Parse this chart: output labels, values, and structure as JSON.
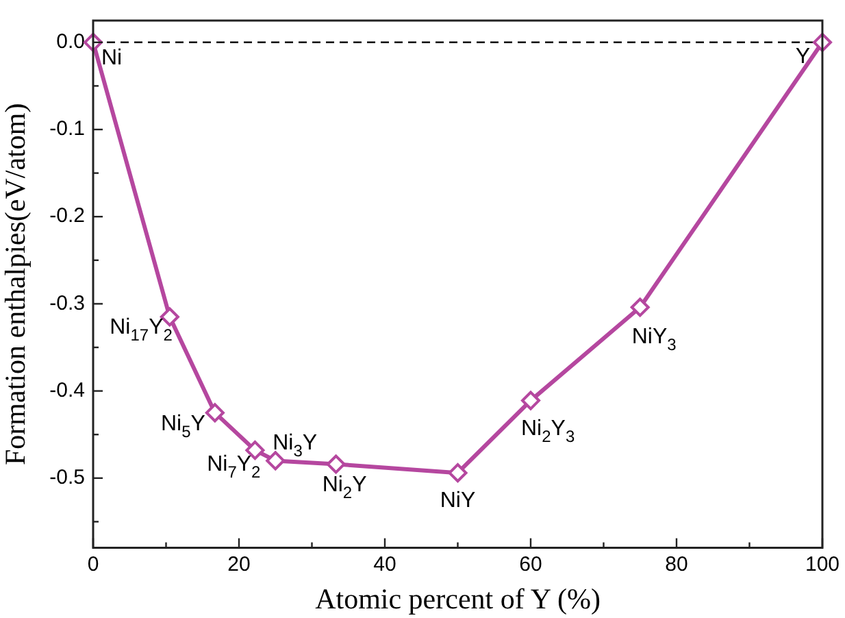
{
  "chart_data": {
    "type": "line",
    "xlabel": "Atomic percent of Y (%)",
    "ylabel": "Formation enthalpies(eV/atom)",
    "x": [
      0,
      10.5,
      16.7,
      22.2,
      25,
      33.3,
      50,
      60,
      75,
      100
    ],
    "series": [
      {
        "color": "#b5479f",
        "values": [
          0,
          -0.315,
          -0.425,
          -0.468,
          -0.48,
          -0.484,
          -0.494,
          -0.411,
          -0.304,
          0
        ]
      }
    ],
    "marker": "diamond",
    "line_style": "solid",
    "grid": false,
    "legend": false,
    "xlim": [
      0,
      100
    ],
    "xticks": [
      0,
      {
        "value": 10,
        "label": null
      },
      20,
      {
        "value": 30,
        "label": null
      },
      40,
      {
        "value": 50,
        "label": null
      },
      60,
      {
        "value": 70,
        "label": null
      },
      80,
      {
        "value": 90,
        "label": null
      },
      100
    ],
    "ylim": [
      -0.58,
      0.025
    ],
    "yticks": [
      {
        "value": -0.55,
        "label": null
      },
      {
        "value": -0.5,
        "label": "-0.5"
      },
      {
        "value": -0.45,
        "label": null
      },
      {
        "value": -0.4,
        "label": "-0.4"
      },
      {
        "value": -0.35,
        "label": null
      },
      {
        "value": -0.3,
        "label": "-0.3"
      },
      {
        "value": -0.25,
        "label": null
      },
      {
        "value": -0.2,
        "label": "-0.2"
      },
      {
        "value": -0.15,
        "label": null
      },
      {
        "value": -0.1,
        "label": "-0.1"
      },
      {
        "value": -0.05,
        "label": null
      },
      {
        "value": 0,
        "label": "0.0"
      }
    ],
    "ref_lines": [
      {
        "axis": "y",
        "value": 0,
        "color": "#000000",
        "line_style": "dashed"
      }
    ],
    "annotations": [
      {
        "text": "Ni",
        "x": 0,
        "y": 0
      },
      {
        "text": "Ni$_{17}$Y$_{2}$",
        "x": 10.5,
        "y": -0.315
      },
      {
        "text": "Ni$_{5}$Y",
        "x": 16.7,
        "y": -0.425
      },
      {
        "text": "Ni$_{7}$Y$_{2}$",
        "x": 22.2,
        "y": -0.468
      },
      {
        "text": "Ni$_{3}$Y",
        "x": 25,
        "y": -0.48
      },
      {
        "text": "Ni$_{2}$Y",
        "x": 33.3,
        "y": -0.484
      },
      {
        "text": "NiY",
        "x": 50,
        "y": -0.494
      },
      {
        "text": "Ni$_{2}$Y$_{3}$",
        "x": 60,
        "y": -0.411
      },
      {
        "text": "NiY$_{3}$",
        "x": 75,
        "y": -0.304
      },
      {
        "text": "Y",
        "x": 100,
        "y": 0
      }
    ]
  }
}
